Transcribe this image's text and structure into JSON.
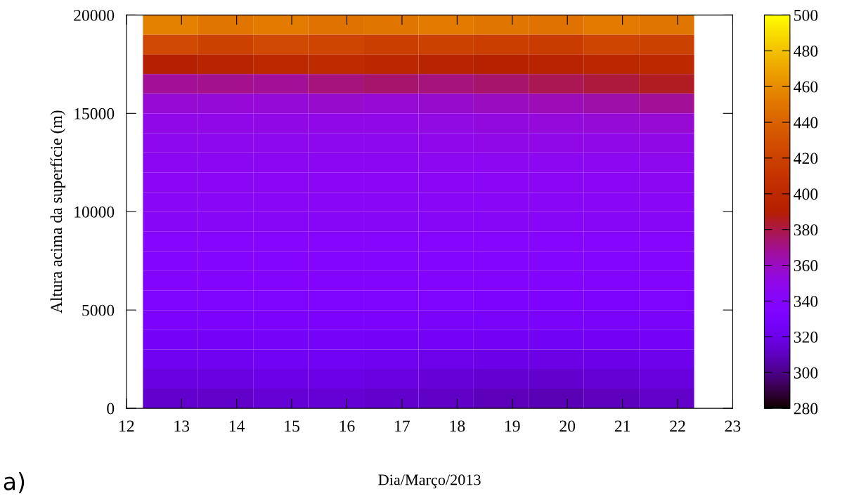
{
  "chart_data": {
    "type": "heatmap",
    "xlabel": "Dia/Março/2013",
    "ylabel": "Altura acima da superfície (m)",
    "annotations": [
      "a)"
    ],
    "x": [
      12.8,
      13.8,
      14.8,
      15.8,
      16.8,
      17.8,
      18.8,
      19.8,
      20.8,
      21.8
    ],
    "cells": [
      [
        455,
        450,
        452,
        448,
        450,
        452,
        450,
        448,
        452,
        450
      ],
      [
        425,
        420,
        425,
        422,
        418,
        420,
        418,
        415,
        422,
        420
      ],
      [
        390,
        395,
        400,
        402,
        398,
        395,
        392,
        395,
        398,
        400
      ],
      [
        368,
        370,
        368,
        372,
        375,
        372,
        375,
        378,
        382,
        385
      ],
      [
        356,
        355,
        355,
        358,
        356,
        358,
        360,
        362,
        365,
        368
      ],
      [
        350,
        350,
        351,
        350,
        350,
        352,
        353,
        354,
        355,
        356
      ],
      [
        348,
        348,
        348,
        348,
        348,
        349,
        350,
        350,
        350,
        351
      ],
      [
        346,
        346,
        346,
        346,
        346,
        347,
        347,
        347,
        347,
        348
      ],
      [
        345,
        345,
        345,
        345,
        345,
        345,
        345,
        345,
        345,
        346
      ],
      [
        344,
        344,
        344,
        344,
        344,
        344,
        344,
        344,
        344,
        344
      ],
      [
        343,
        343,
        343,
        343,
        343,
        343,
        343,
        343,
        343,
        343
      ],
      [
        341,
        341,
        341,
        341,
        341,
        341,
        341,
        341,
        341,
        341
      ],
      [
        339,
        339,
        339,
        339,
        339,
        339,
        339,
        339,
        339,
        339
      ],
      [
        337,
        337,
        337,
        337,
        337,
        337,
        337,
        336,
        336,
        337
      ],
      [
        334,
        334,
        334,
        334,
        334,
        334,
        333,
        333,
        333,
        334
      ],
      [
        331,
        331,
        331,
        331,
        331,
        330,
        330,
        329,
        329,
        330
      ],
      [
        327,
        327,
        328,
        328,
        327,
        326,
        325,
        324,
        325,
        326
      ],
      [
        323,
        323,
        324,
        324,
        323,
        321,
        320,
        319,
        320,
        322
      ],
      [
        318,
        318,
        320,
        320,
        318,
        316,
        314,
        313,
        315,
        317
      ],
      [
        313,
        312,
        315,
        315,
        313,
        311,
        309,
        308,
        310,
        312
      ]
    ],
    "xlim": [
      12,
      23
    ],
    "xticks": [
      12,
      13,
      14,
      15,
      16,
      17,
      18,
      19,
      20,
      21,
      22,
      23
    ],
    "ylim": [
      0,
      20000
    ],
    "yticks": [
      0,
      5000,
      10000,
      15000,
      20000
    ],
    "clim": [
      280,
      500
    ],
    "cticks": [
      280,
      300,
      320,
      340,
      360,
      380,
      400,
      420,
      440,
      460,
      480,
      500
    ]
  }
}
